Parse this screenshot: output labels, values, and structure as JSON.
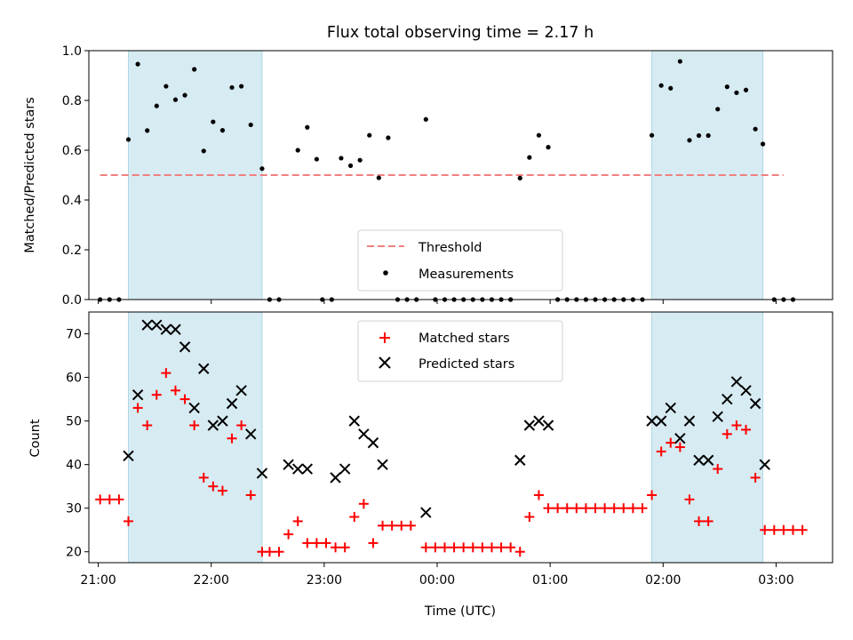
{
  "chart_data": [
    {
      "type": "scatter",
      "title": "Flux total observing time = 2.17 h",
      "xlabel": "",
      "ylabel": "Matched/Predicted stars",
      "ylim": [
        0,
        1.0
      ],
      "yticks": [
        "0.0",
        "0.2",
        "0.4",
        "0.6",
        "0.8",
        "1.0"
      ],
      "xlim": [
        "20:55",
        "03:30"
      ],
      "legend_position": "lower-center",
      "shaded_color": "#add8e6",
      "shaded_regions": [
        [
          "21:16",
          "22:27"
        ],
        [
          "01:54",
          "02:53"
        ]
      ],
      "threshold": {
        "name": "Threshold",
        "value": 0.5,
        "x_range": [
          "21:01",
          "03:04"
        ],
        "color": "#f08080"
      },
      "measurements": {
        "name": "Measurements",
        "color": "#000000",
        "points": [
          [
            "21:01",
            0.0
          ],
          [
            "21:06",
            0.0
          ],
          [
            "21:11",
            0.0
          ],
          [
            "21:16",
            0.643
          ],
          [
            "21:21",
            0.946
          ],
          [
            "21:26",
            0.679
          ],
          [
            "21:31",
            0.778
          ],
          [
            "21:36",
            0.857
          ],
          [
            "21:41",
            0.803
          ],
          [
            "21:46",
            0.821
          ],
          [
            "21:51",
            0.925
          ],
          [
            "21:56",
            0.597
          ],
          [
            "22:01",
            0.714
          ],
          [
            "22:06",
            0.68
          ],
          [
            "22:11",
            0.852
          ],
          [
            "22:16",
            0.857
          ],
          [
            "22:21",
            0.702
          ],
          [
            "22:27",
            0.526
          ],
          [
            "22:31",
            0.0
          ],
          [
            "22:36",
            0.0
          ],
          [
            "22:46",
            0.6
          ],
          [
            "22:51",
            0.692
          ],
          [
            "22:56",
            0.564
          ],
          [
            "22:59",
            0.0
          ],
          [
            "23:04",
            0.0
          ],
          [
            "23:09",
            0.568
          ],
          [
            "23:14",
            0.538
          ],
          [
            "23:19",
            0.56
          ],
          [
            "23:24",
            0.66
          ],
          [
            "23:29",
            0.489
          ],
          [
            "23:34",
            0.65
          ],
          [
            "23:39",
            0.0
          ],
          [
            "23:44",
            0.0
          ],
          [
            "23:49",
            0.0
          ],
          [
            "23:54",
            0.724
          ],
          [
            "23:59",
            0.0
          ],
          [
            "00:04",
            0.0
          ],
          [
            "00:09",
            0.0
          ],
          [
            "00:14",
            0.0
          ],
          [
            "00:19",
            0.0
          ],
          [
            "00:24",
            0.0
          ],
          [
            "00:29",
            0.0
          ],
          [
            "00:34",
            0.0
          ],
          [
            "00:39",
            0.0
          ],
          [
            "00:44",
            0.488
          ],
          [
            "00:49",
            0.571
          ],
          [
            "00:54",
            0.66
          ],
          [
            "00:59",
            0.612
          ],
          [
            "01:04",
            0.0
          ],
          [
            "01:09",
            0.0
          ],
          [
            "01:14",
            0.0
          ],
          [
            "01:19",
            0.0
          ],
          [
            "01:24",
            0.0
          ],
          [
            "01:29",
            0.0
          ],
          [
            "01:34",
            0.0
          ],
          [
            "01:39",
            0.0
          ],
          [
            "01:44",
            0.0
          ],
          [
            "01:49",
            0.0
          ],
          [
            "01:54",
            0.66
          ],
          [
            "01:59",
            0.86
          ],
          [
            "02:04",
            0.849
          ],
          [
            "02:09",
            0.957
          ],
          [
            "02:14",
            0.64
          ],
          [
            "02:19",
            0.659
          ],
          [
            "02:24",
            0.659
          ],
          [
            "02:29",
            0.765
          ],
          [
            "02:34",
            0.855
          ],
          [
            "02:39",
            0.831
          ],
          [
            "02:44",
            0.842
          ],
          [
            "02:49",
            0.685
          ],
          [
            "02:53",
            0.625
          ],
          [
            "02:59",
            0.0
          ],
          [
            "03:04",
            0.0
          ],
          [
            "03:09",
            0.0
          ]
        ]
      },
      "legend": [
        "Threshold",
        "Measurements"
      ]
    },
    {
      "type": "scatter",
      "title": "",
      "xlabel": "Time (UTC)",
      "ylabel": "Count",
      "ylim": [
        17.5,
        75
      ],
      "yticks": [
        "20",
        "30",
        "40",
        "50",
        "60",
        "70"
      ],
      "xlim": [
        "20:55",
        "03:30"
      ],
      "xticks": [
        "21:00",
        "22:00",
        "23:00",
        "00:00",
        "01:00",
        "02:00",
        "03:00"
      ],
      "legend_position": "upper-center",
      "shaded_color": "#add8e6",
      "shaded_regions": [
        [
          "21:16",
          "22:27"
        ],
        [
          "01:54",
          "02:53"
        ]
      ],
      "series": [
        {
          "name": "Matched stars",
          "marker": "plus",
          "color": "#ff0000",
          "points": [
            [
              "21:01",
              32
            ],
            [
              "21:06",
              32
            ],
            [
              "21:11",
              32
            ],
            [
              "21:16",
              27
            ],
            [
              "21:21",
              53
            ],
            [
              "21:26",
              49
            ],
            [
              "21:31",
              56
            ],
            [
              "21:36",
              61
            ],
            [
              "21:41",
              57
            ],
            [
              "21:46",
              55
            ],
            [
              "21:51",
              49
            ],
            [
              "21:56",
              37
            ],
            [
              "22:01",
              35
            ],
            [
              "22:06",
              34
            ],
            [
              "22:11",
              46
            ],
            [
              "22:16",
              49
            ],
            [
              "22:21",
              33
            ],
            [
              "22:27",
              20
            ],
            [
              "22:31",
              20
            ],
            [
              "22:36",
              20
            ],
            [
              "22:41",
              24
            ],
            [
              "22:46",
              27
            ],
            [
              "22:51",
              22
            ],
            [
              "22:56",
              22
            ],
            [
              "23:01",
              22
            ],
            [
              "23:06",
              21
            ],
            [
              "23:11",
              21
            ],
            [
              "23:16",
              28
            ],
            [
              "23:21",
              31
            ],
            [
              "23:26",
              22
            ],
            [
              "23:31",
              26
            ],
            [
              "23:36",
              26
            ],
            [
              "23:41",
              26
            ],
            [
              "23:46",
              26
            ],
            [
              "23:54",
              21
            ],
            [
              "23:59",
              21
            ],
            [
              "00:04",
              21
            ],
            [
              "00:09",
              21
            ],
            [
              "00:14",
              21
            ],
            [
              "00:19",
              21
            ],
            [
              "00:24",
              21
            ],
            [
              "00:29",
              21
            ],
            [
              "00:34",
              21
            ],
            [
              "00:39",
              21
            ],
            [
              "00:44",
              20
            ],
            [
              "00:49",
              28
            ],
            [
              "00:54",
              33
            ],
            [
              "00:59",
              30
            ],
            [
              "01:04",
              30
            ],
            [
              "01:09",
              30
            ],
            [
              "01:14",
              30
            ],
            [
              "01:19",
              30
            ],
            [
              "01:24",
              30
            ],
            [
              "01:29",
              30
            ],
            [
              "01:34",
              30
            ],
            [
              "01:39",
              30
            ],
            [
              "01:44",
              30
            ],
            [
              "01:49",
              30
            ],
            [
              "01:54",
              33
            ],
            [
              "01:59",
              43
            ],
            [
              "02:04",
              45
            ],
            [
              "02:09",
              44
            ],
            [
              "02:14",
              32
            ],
            [
              "02:19",
              27
            ],
            [
              "02:24",
              27
            ],
            [
              "02:29",
              39
            ],
            [
              "02:34",
              47
            ],
            [
              "02:39",
              49
            ],
            [
              "02:44",
              48
            ],
            [
              "02:49",
              37
            ],
            [
              "02:54",
              25
            ],
            [
              "02:59",
              25
            ],
            [
              "03:04",
              25
            ],
            [
              "03:09",
              25
            ],
            [
              "03:14",
              25
            ]
          ]
        },
        {
          "name": "Predicted stars",
          "marker": "x",
          "color": "#000000",
          "points": [
            [
              "21:16",
              42
            ],
            [
              "21:21",
              56
            ],
            [
              "21:26",
              72
            ],
            [
              "21:31",
              72
            ],
            [
              "21:36",
              71
            ],
            [
              "21:41",
              71
            ],
            [
              "21:46",
              67
            ],
            [
              "21:51",
              53
            ],
            [
              "21:56",
              62
            ],
            [
              "22:01",
              49
            ],
            [
              "22:06",
              50
            ],
            [
              "22:11",
              54
            ],
            [
              "22:16",
              57
            ],
            [
              "22:21",
              47
            ],
            [
              "22:27",
              38
            ],
            [
              "22:41",
              40
            ],
            [
              "22:46",
              39
            ],
            [
              "22:51",
              39
            ],
            [
              "23:06",
              37
            ],
            [
              "23:11",
              39
            ],
            [
              "23:16",
              50
            ],
            [
              "23:21",
              47
            ],
            [
              "23:26",
              45
            ],
            [
              "23:31",
              40
            ],
            [
              "23:54",
              29
            ],
            [
              "00:44",
              41
            ],
            [
              "00:49",
              49
            ],
            [
              "00:54",
              50
            ],
            [
              "00:59",
              49
            ],
            [
              "01:54",
              50
            ],
            [
              "01:59",
              50
            ],
            [
              "02:04",
              53
            ],
            [
              "02:09",
              46
            ],
            [
              "02:14",
              50
            ],
            [
              "02:19",
              41
            ],
            [
              "02:24",
              41
            ],
            [
              "02:29",
              51
            ],
            [
              "02:34",
              55
            ],
            [
              "02:39",
              59
            ],
            [
              "02:44",
              57
            ],
            [
              "02:49",
              54
            ],
            [
              "02:54",
              40
            ]
          ]
        }
      ],
      "legend": [
        "Matched stars",
        "Predicted stars"
      ]
    }
  ]
}
